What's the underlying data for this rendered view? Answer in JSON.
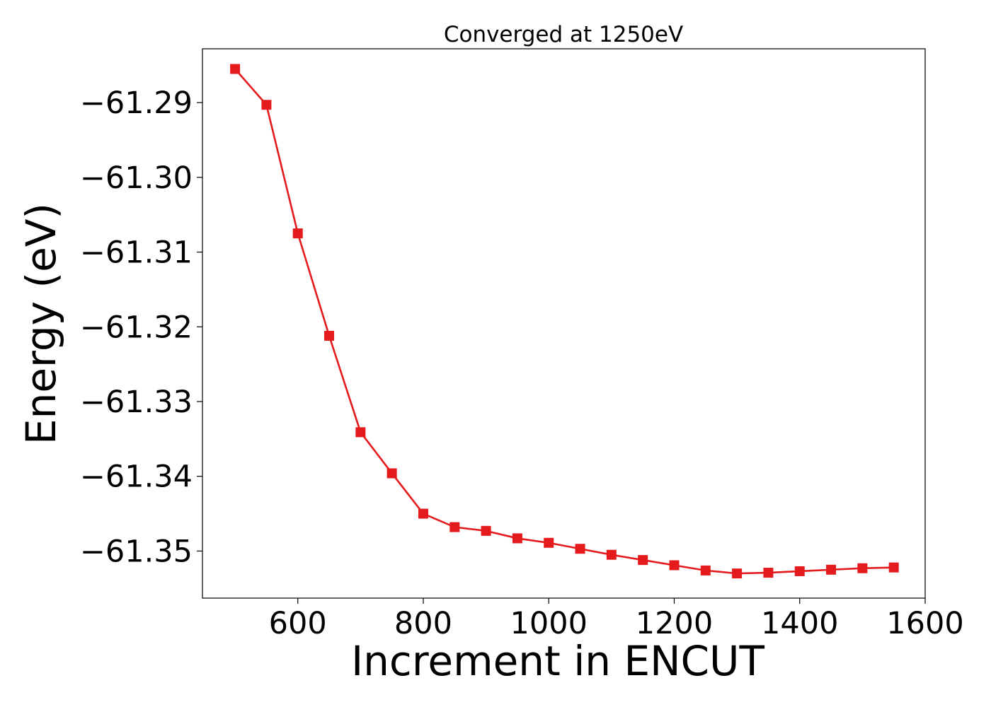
{
  "chart_data": {
    "type": "line",
    "title": "Converged at 1250eV",
    "xlabel": "Increment in ENCUT",
    "ylabel": "Energy (eV)",
    "xlim": [
      448,
      1600
    ],
    "ylim": [
      -61.3563,
      -61.2828
    ],
    "x_ticks": [
      600,
      800,
      1000,
      1200,
      1400,
      1600
    ],
    "x_tick_labels": [
      "600",
      "800",
      "1000",
      "1200",
      "1400",
      "1600"
    ],
    "y_ticks": [
      -61.29,
      -61.3,
      -61.31,
      -61.32,
      -61.33,
      -61.34,
      -61.35
    ],
    "y_tick_labels": [
      "−61.29",
      "−61.30",
      "−61.31",
      "−61.32",
      "−61.33",
      "−61.34",
      "−61.35"
    ],
    "grid": false,
    "legend": "none",
    "series": [
      {
        "color": "#e41a1c",
        "marker": "square",
        "x": [
          500,
          550,
          600,
          650,
          700,
          750,
          800,
          850,
          900,
          950,
          1000,
          1050,
          1100,
          1150,
          1200,
          1250,
          1300,
          1350,
          1400,
          1450,
          1500,
          1550
        ],
        "y": [
          -61.2855,
          -61.2903,
          -61.3075,
          -61.3212,
          -61.3341,
          -61.3396,
          -61.345,
          -61.3468,
          -61.3473,
          -61.3483,
          -61.3489,
          -61.3497,
          -61.3505,
          -61.3512,
          -61.3519,
          -61.3526,
          -61.353,
          -61.3529,
          -61.3527,
          -61.3525,
          -61.3523,
          -61.3522
        ]
      }
    ]
  }
}
